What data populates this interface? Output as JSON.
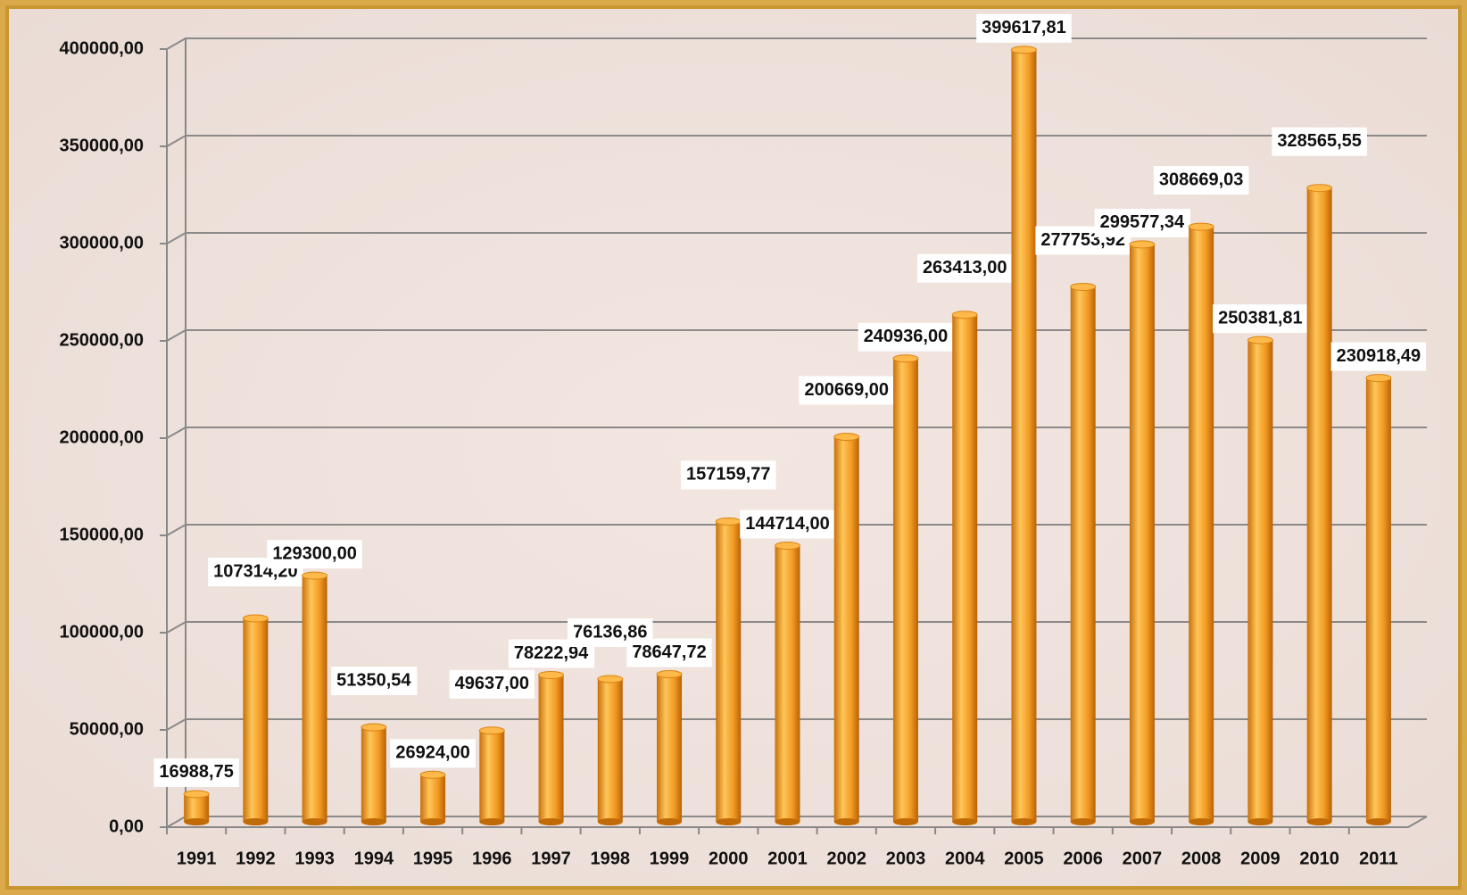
{
  "chart_data": {
    "type": "bar",
    "categories": [
      "1991",
      "1992",
      "1993",
      "1994",
      "1995",
      "1996",
      "1997",
      "1998",
      "1999",
      "2000",
      "2001",
      "2002",
      "2003",
      "2004",
      "2005",
      "2006",
      "2007",
      "2008",
      "2009",
      "2010",
      "2011"
    ],
    "values": [
      16988.75,
      107314.2,
      129300.0,
      51350.54,
      26924.0,
      49637.0,
      78222.94,
      76136.86,
      78647.72,
      157159.77,
      144714.0,
      200669.0,
      240936.0,
      263413.0,
      399617.81,
      277753.92,
      299577.34,
      308669.03,
      250381.81,
      328565.55,
      230918.49
    ],
    "value_labels": [
      "16988,75",
      "107314,20",
      "129300,00",
      "51350,54",
      "26924,00",
      "49637,00",
      "78222,94",
      "76136,86",
      "78647,72",
      "157159,77",
      "144714,00",
      "200669,00",
      "240936,00",
      "263413,00",
      "399617,81",
      "277753,92",
      "299577,34",
      "308669,03",
      "250381,81",
      "328565,55",
      "230918,49"
    ],
    "color": "#f5a02a",
    "ylim": [
      0,
      400000
    ],
    "yticks": [
      {
        "value": 0,
        "label": "0,00"
      },
      {
        "value": 50000,
        "label": "50000,00"
      },
      {
        "value": 100000,
        "label": "100000,00"
      },
      {
        "value": 150000,
        "label": "150000,00"
      },
      {
        "value": 200000,
        "label": "200000,00"
      },
      {
        "value": 250000,
        "label": "250000,00"
      },
      {
        "value": 300000,
        "label": "300000,00"
      },
      {
        "value": 350000,
        "label": "350000,00"
      },
      {
        "value": 400000,
        "label": "400000,00"
      }
    ],
    "grid": true
  }
}
